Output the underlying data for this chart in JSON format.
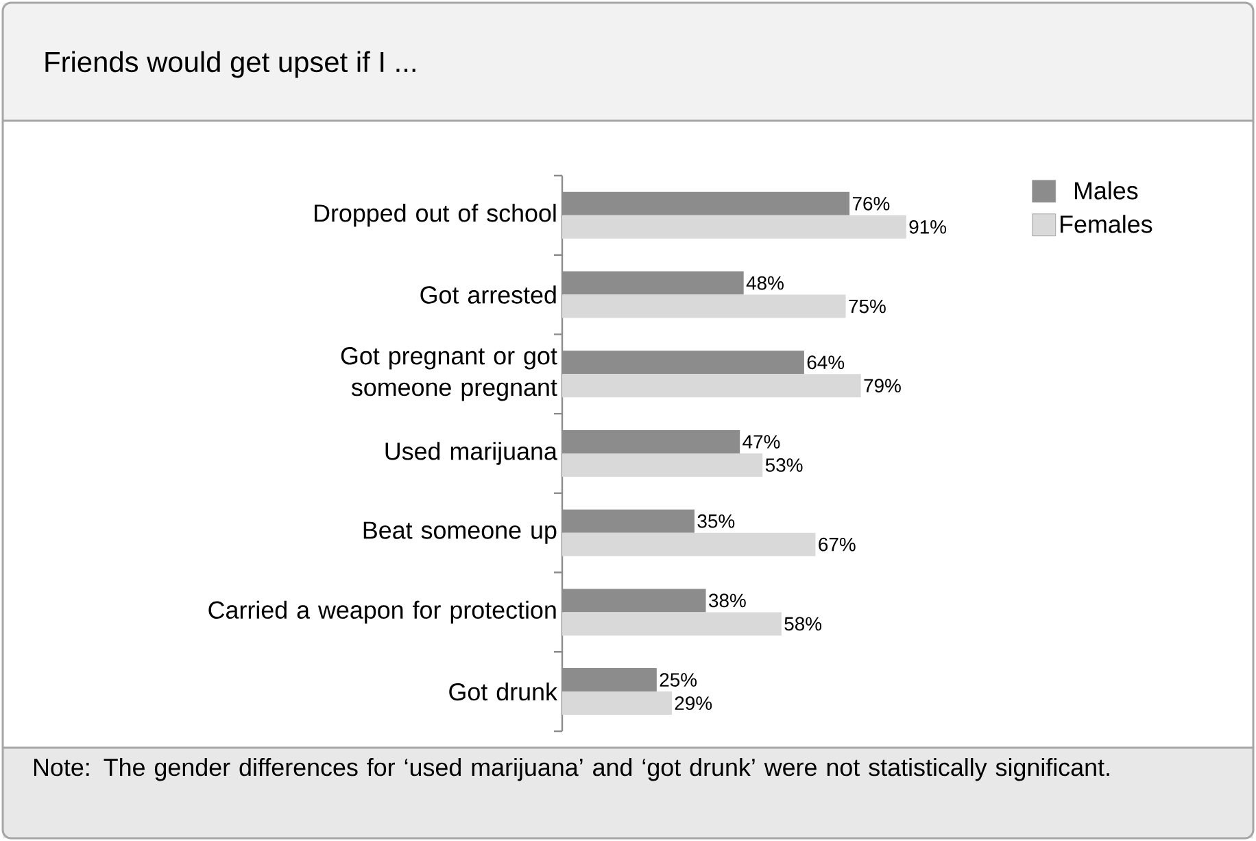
{
  "chart_data": {
    "type": "bar",
    "orientation": "horizontal",
    "title": "Friends would get upset if I ...",
    "categories": [
      "Dropped out of school",
      "Got arrested",
      "Got pregnant or got someone pregnant",
      "Used marijuana",
      "Beat someone up",
      "Carried a weapon for protection",
      "Got drunk"
    ],
    "series": [
      {
        "name": "Males",
        "color": "#8c8c8c",
        "values": [
          76,
          48,
          64,
          47,
          35,
          38,
          25
        ],
        "value_labels": [
          "76%",
          "48%",
          "64%",
          "47%",
          "35%",
          "38%",
          "25%"
        ]
      },
      {
        "name": "Females",
        "color": "#d9d9d9",
        "values": [
          91,
          75,
          79,
          53,
          67,
          58,
          29
        ],
        "value_labels": [
          "91%",
          "75%",
          "79%",
          "53%",
          "67%",
          "58%",
          "29%"
        ]
      }
    ],
    "legend": "top right",
    "tick_labels": "y",
    "annotations": [
      "Note: The gender differences for ‘used marijuana’ and ‘got drunk’ were not statistically significant."
    ]
  }
}
